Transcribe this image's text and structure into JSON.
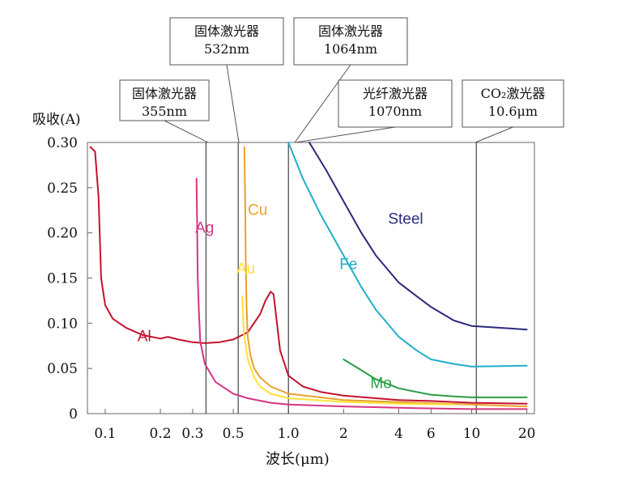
{
  "chart_data": {
    "type": "line",
    "ylabel": "吸收(A)",
    "xlabel": "波长(μm)",
    "xscale": "log",
    "xlim": [
      0.08,
      22
    ],
    "ylim": [
      0,
      0.3
    ],
    "y_ticks": [
      "0",
      "0.05",
      "0.10",
      "0.15",
      "0.20",
      "0.25",
      "0.30"
    ],
    "y_tick_values": [
      0,
      0.05,
      0.1,
      0.15,
      0.2,
      0.25,
      0.3
    ],
    "x_ticks": [
      "0.1",
      "0.2",
      "0.3",
      "0.5",
      "1.0",
      "2",
      "4",
      "6",
      "10",
      "20"
    ],
    "x_tick_values": [
      0.1,
      0.2,
      0.3,
      0.5,
      1.0,
      2,
      4,
      6,
      10,
      20
    ],
    "grid": false,
    "series": [
      {
        "name": "Al",
        "color": "#c4122f",
        "label_at": [
          0.15,
          0.08
        ],
        "x": [
          0.083,
          0.088,
          0.092,
          0.095,
          0.1,
          0.11,
          0.13,
          0.16,
          0.2,
          0.22,
          0.25,
          0.3,
          0.35,
          0.42,
          0.5,
          0.6,
          0.7,
          0.75,
          0.8,
          0.83,
          0.86,
          0.9,
          1.0,
          1.2,
          1.5,
          2,
          3,
          4,
          6,
          10,
          20
        ],
        "y": [
          0.295,
          0.29,
          0.24,
          0.15,
          0.12,
          0.105,
          0.095,
          0.087,
          0.083,
          0.085,
          0.082,
          0.079,
          0.078,
          0.079,
          0.082,
          0.09,
          0.11,
          0.125,
          0.135,
          0.132,
          0.105,
          0.07,
          0.042,
          0.03,
          0.024,
          0.02,
          0.017,
          0.015,
          0.014,
          0.012,
          0.011
        ]
      },
      {
        "name": "Ag",
        "color": "#d63384",
        "label_at": [
          0.31,
          0.2
        ],
        "x": [
          0.315,
          0.318,
          0.32,
          0.325,
          0.33,
          0.35,
          0.4,
          0.5,
          0.6,
          0.8,
          1.0,
          2,
          5,
          10,
          20
        ],
        "y": [
          0.26,
          0.2,
          0.15,
          0.11,
          0.08,
          0.055,
          0.035,
          0.022,
          0.017,
          0.012,
          0.01,
          0.008,
          0.006,
          0.005,
          0.005
        ]
      },
      {
        "name": "Cu",
        "color": "#e8a12b",
        "label_at": [
          0.6,
          0.22
        ],
        "x": [
          0.575,
          0.58,
          0.585,
          0.59,
          0.6,
          0.62,
          0.65,
          0.7,
          0.8,
          1.0,
          2,
          5,
          10,
          20
        ],
        "y": [
          0.295,
          0.24,
          0.17,
          0.12,
          0.085,
          0.065,
          0.05,
          0.04,
          0.03,
          0.022,
          0.015,
          0.012,
          0.01,
          0.008
        ]
      },
      {
        "name": "Au",
        "color": "#ffe234",
        "label_at": [
          0.52,
          0.155
        ],
        "x": [
          0.56,
          0.57,
          0.6,
          0.65,
          0.7,
          0.8,
          1.0,
          2,
          4,
          8
        ],
        "y": [
          0.13,
          0.09,
          0.06,
          0.04,
          0.03,
          0.022,
          0.017,
          0.013,
          0.011,
          0.01
        ]
      },
      {
        "name": "Fe",
        "color": "#22aecb",
        "label_at": [
          1.9,
          0.16
        ],
        "x": [
          1.0,
          1.2,
          1.5,
          2,
          2.5,
          3,
          4,
          5,
          6,
          8,
          10,
          20
        ],
        "y": [
          0.3,
          0.26,
          0.22,
          0.175,
          0.14,
          0.115,
          0.085,
          0.07,
          0.06,
          0.055,
          0.052,
          0.053
        ]
      },
      {
        "name": "Steel",
        "color": "#2b2a7b",
        "label_at": [
          3.5,
          0.21
        ],
        "x": [
          1.3,
          1.6,
          2,
          2.5,
          3,
          4,
          5,
          6,
          8,
          10,
          20
        ],
        "y": [
          0.3,
          0.27,
          0.235,
          0.2,
          0.175,
          0.145,
          0.13,
          0.118,
          0.103,
          0.097,
          0.093
        ]
      },
      {
        "name": "Mo",
        "color": "#2a9d46",
        "label_at": [
          2.8,
          0.028
        ],
        "x": [
          2,
          2.5,
          3,
          4,
          5,
          6,
          8,
          10,
          20
        ],
        "y": [
          0.06,
          0.048,
          0.038,
          0.028,
          0.024,
          0.021,
          0.019,
          0.018,
          0.018
        ]
      }
    ],
    "annotations": [
      {
        "text": "固体激光器",
        "sub": "355nm",
        "at_x": 0.355,
        "color": "#222"
      },
      {
        "text": "固体激光器",
        "sub": "532nm",
        "at_x": 0.532,
        "color": "#222"
      },
      {
        "text": "固体激光器",
        "sub": "1064nm",
        "at_x": 1.064,
        "color": "#222"
      },
      {
        "text": "光纤激光器",
        "sub": "1070nm",
        "at_x": 1.07,
        "color": "#222"
      },
      {
        "text": "CO₂激光器",
        "sub": "10.6μm",
        "at_x": 10.6,
        "color": "#222"
      }
    ]
  }
}
